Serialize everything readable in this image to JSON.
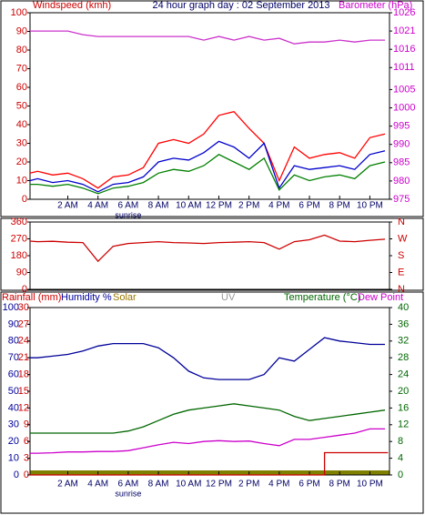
{
  "chart_data": [
    {
      "type": "line",
      "title": "24 hour graph day : 02 September 2013",
      "x": [
        -0.5,
        0,
        1,
        2,
        3,
        4,
        5,
        6,
        7,
        8,
        9,
        10,
        11,
        12,
        13,
        14,
        15,
        16,
        17,
        18,
        19,
        20,
        21,
        22,
        23
      ],
      "xlim": [
        -0.5,
        23.3
      ],
      "xticks": [
        {
          "value": 2,
          "label": "2 AM"
        },
        {
          "value": 4,
          "label": "4 AM"
        },
        {
          "value": 6,
          "label": "6 AM"
        },
        {
          "value": 8,
          "label": "8 AM"
        },
        {
          "value": 10,
          "label": "10 AM"
        },
        {
          "value": 12,
          "label": "12 PM"
        },
        {
          "value": 14,
          "label": "2 PM"
        },
        {
          "value": 16,
          "label": "4 PM"
        },
        {
          "value": 18,
          "label": "6 PM"
        },
        {
          "value": 20,
          "label": "8 PM"
        },
        {
          "value": 22,
          "label": "10 PM"
        }
      ],
      "annotations": [
        {
          "text": "sunrise",
          "x": 6
        }
      ],
      "axes": [
        {
          "label": "Windspeed (kmh)",
          "color": "#cc0000",
          "side": "left",
          "lim": [
            0,
            100
          ],
          "ticks": [
            0,
            10,
            20,
            30,
            40,
            50,
            60,
            70,
            80,
            90,
            100
          ]
        },
        {
          "label": "Barometer (hPa)",
          "color": "#cc00cc",
          "side": "right",
          "lim": [
            975,
            1026
          ],
          "ticks": [
            975,
            980,
            985,
            990,
            995,
            1000,
            1005,
            1011,
            1016,
            1021,
            1026
          ]
        }
      ],
      "series": [
        {
          "color": "#ff0000",
          "axis": 0,
          "values": [
            14,
            15,
            13,
            14,
            11,
            6,
            12,
            13,
            17,
            30,
            32,
            30,
            35,
            45,
            47,
            38,
            30,
            10,
            28,
            22,
            24,
            25,
            22,
            33,
            35
          ]
        },
        {
          "color": "#0000cc",
          "axis": 0,
          "values": [
            10,
            11,
            9,
            10,
            8,
            4,
            8,
            9,
            12,
            20,
            22,
            21,
            25,
            31,
            28,
            22,
            30,
            6,
            18,
            16,
            17,
            18,
            16,
            24,
            26
          ]
        },
        {
          "color": "#008000",
          "axis": 0,
          "values": [
            8,
            8,
            7,
            8,
            6,
            3,
            6,
            7,
            9,
            14,
            16,
            15,
            18,
            24,
            20,
            16,
            22,
            5,
            13,
            10,
            12,
            13,
            11,
            18,
            20
          ]
        },
        {
          "color": "#cc33cc",
          "axis": 1,
          "values": [
            1021,
            1021,
            1021,
            1021,
            1020,
            1019.5,
            1019.5,
            1019.5,
            1019.5,
            1019.5,
            1019.5,
            1019.5,
            1018.5,
            1019.5,
            1018.5,
            1019.5,
            1018.5,
            1019,
            1017.5,
            1018,
            1018,
            1018.5,
            1018,
            1018.5,
            1018.5
          ]
        }
      ]
    },
    {
      "type": "line",
      "x": [
        -0.5,
        0,
        1,
        2,
        3,
        4,
        5,
        6,
        7,
        8,
        9,
        10,
        11,
        12,
        13,
        14,
        15,
        16,
        17,
        18,
        19,
        20,
        21,
        22,
        23
      ],
      "xlim": [
        -0.5,
        23.3
      ],
      "axes": [
        {
          "color": "#cc0000",
          "side": "left",
          "lim": [
            0,
            360
          ],
          "ticks": [
            0,
            90,
            180,
            270,
            360
          ]
        },
        {
          "color": "#cc0000",
          "side": "right",
          "lim": [
            0,
            360
          ],
          "ticks": [
            {
              "value": 0,
              "label": "N"
            },
            {
              "value": 90,
              "label": "E"
            },
            {
              "value": 180,
              "label": "S"
            },
            {
              "value": 270,
              "label": "W"
            },
            {
              "value": 360,
              "label": "N"
            }
          ]
        }
      ],
      "series": [
        {
          "color": "#cc0000",
          "axis": 0,
          "values": [
            258,
            255,
            257,
            252,
            250,
            150,
            230,
            245,
            250,
            255,
            250,
            248,
            245,
            250,
            252,
            255,
            250,
            215,
            255,
            265,
            290,
            258,
            255,
            262,
            268
          ]
        }
      ]
    },
    {
      "type": "line",
      "labels": [
        {
          "text": "Rainfall (mm)",
          "color": "#cc0000"
        },
        {
          "text": "Humidity %",
          "color": "#000099"
        },
        {
          "text": "Solar",
          "color": "#997700"
        },
        {
          "text": "UV",
          "color": "#999999"
        },
        {
          "text": "Temperature (°C)",
          "color": "#006600"
        },
        {
          "text": "Dew Point",
          "color": "#cc00cc"
        }
      ],
      "x": [
        -0.5,
        0,
        1,
        2,
        3,
        4,
        5,
        6,
        7,
        8,
        9,
        10,
        11,
        12,
        13,
        14,
        15,
        16,
        17,
        18,
        19,
        20,
        21,
        22,
        23
      ],
      "xlim": [
        -0.5,
        23.3
      ],
      "xticks": [
        {
          "value": 2,
          "label": "2 AM"
        },
        {
          "value": 4,
          "label": "4 AM"
        },
        {
          "value": 6,
          "label": "6 AM"
        },
        {
          "value": 8,
          "label": "8 AM"
        },
        {
          "value": 10,
          "label": "10 AM"
        },
        {
          "value": 12,
          "label": "12 PM"
        },
        {
          "value": 14,
          "label": "2 PM"
        },
        {
          "value": 16,
          "label": "4 PM"
        },
        {
          "value": 18,
          "label": "6 PM"
        },
        {
          "value": 20,
          "label": "8 PM"
        },
        {
          "value": 22,
          "label": "10 PM"
        }
      ],
      "annotations": [
        {
          "text": "sunrise",
          "x": 6
        }
      ],
      "axes": [
        {
          "color": "#000099",
          "side": "left",
          "lim": [
            0,
            100
          ],
          "ticks": [
            0,
            10,
            20,
            30,
            40,
            50,
            60,
            70,
            80,
            90,
            100
          ]
        },
        {
          "color": "#cc0000",
          "side": "left",
          "lim": [
            0,
            30
          ],
          "ticks": [
            0,
            3,
            6,
            9,
            12,
            15,
            18,
            21,
            24,
            27,
            30
          ]
        },
        {
          "color": "#006600",
          "side": "right",
          "lim": [
            0,
            40
          ],
          "ticks": [
            0,
            4,
            8,
            12,
            16,
            20,
            24,
            28,
            32,
            36,
            40
          ]
        }
      ],
      "series": [
        {
          "color": "#000099",
          "axis": 0,
          "values": [
            70,
            70,
            71,
            72,
            74,
            77,
            78.5,
            78.5,
            78.5,
            76,
            70,
            62,
            58,
            57,
            57,
            57,
            60,
            70,
            68,
            75,
            82,
            80,
            79,
            78,
            78
          ]
        },
        {
          "color": "#006600",
          "axis": 2,
          "values": [
            10,
            10,
            10,
            10,
            10,
            10,
            10,
            10.5,
            11.5,
            13,
            14.5,
            15.5,
            16,
            16.5,
            17,
            16.5,
            16,
            15.5,
            14,
            13,
            13.5,
            14,
            14.5,
            15,
            15.5
          ]
        },
        {
          "color": "#cc00cc",
          "axis": 2,
          "values": [
            5.2,
            5.2,
            5.3,
            5.5,
            5.5,
            5.6,
            5.6,
            5.8,
            6.5,
            7.2,
            7.8,
            7.5,
            8,
            8.2,
            8,
            8.1,
            7.5,
            7,
            8.5,
            8.5,
            9,
            9.5,
            10,
            11,
            11
          ]
        },
        {
          "color": "#cc0000",
          "axis": 1,
          "x": [
            -0.5,
            19,
            19,
            23.2
          ],
          "values": [
            0,
            0,
            4,
            4
          ]
        }
      ]
    }
  ]
}
